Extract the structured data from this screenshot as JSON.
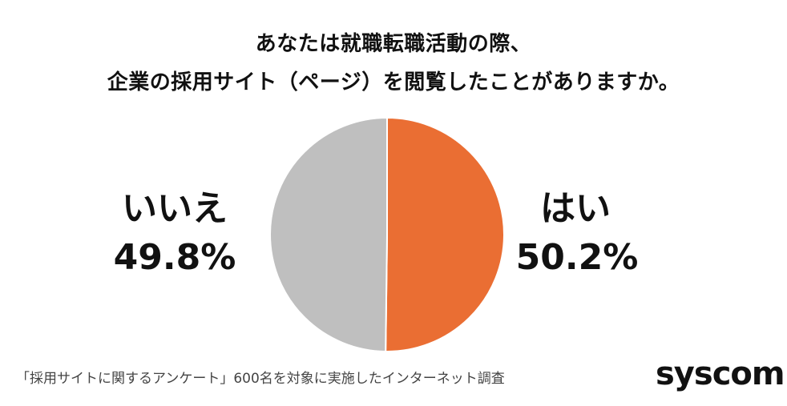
{
  "chart_data": {
    "type": "pie",
    "title_lines": [
      "あなたは就職転職活動の際、",
      "企業の採用サイト（ページ）を閲覧したことがありますか。"
    ],
    "slices": [
      {
        "label": "はい",
        "value": 50.2,
        "value_label": "50.2%",
        "color": "#EA6E33"
      },
      {
        "label": "いいえ",
        "value": 49.8,
        "value_label": "49.8%",
        "color": "#BFBFBF"
      }
    ]
  },
  "footnote": "「採用サイトに関するアンケート」600名を対象に実施したインターネット調査",
  "logo_text": "syscom"
}
